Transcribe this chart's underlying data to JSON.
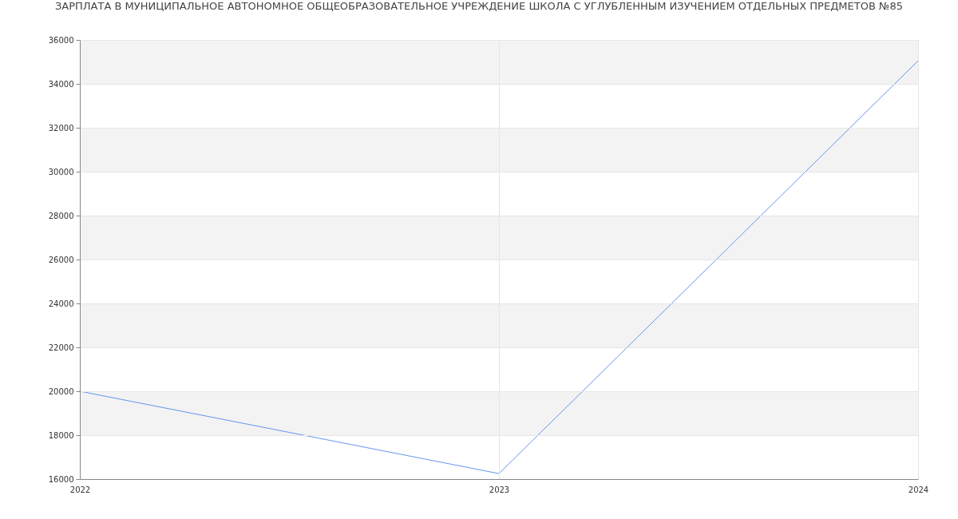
{
  "chart_data": {
    "type": "line",
    "title": "ЗАРПЛАТА В МУНИЦИПАЛЬНОЕ АВТОНОМНОЕ ОБЩЕОБРАЗОВАТЕЛЬНОЕ УЧРЕЖДЕНИЕ ШКОЛА С УГЛУБЛЕННЫМ ИЗУЧЕНИЕМ ОТДЕЛЬНЫХ ПРЕДМЕТОВ №85",
    "x": [
      2022,
      2023,
      2024
    ],
    "series": [
      {
        "color": "#6495ed",
        "values": [
          20000,
          16250,
          35050
        ]
      }
    ],
    "xlim": [
      2022,
      2024
    ],
    "xticks": [
      2022,
      2023,
      2024
    ],
    "ylim": [
      16000,
      36000
    ],
    "yticks": [
      16000,
      18000,
      20000,
      22000,
      24000,
      26000,
      28000,
      30000,
      32000,
      34000,
      36000
    ],
    "grid": true,
    "line_style": "solid",
    "bands": [
      {
        "axis": "y",
        "from": 18000,
        "to": 20000,
        "color": "#f3f3f3"
      },
      {
        "axis": "y",
        "from": 22000,
        "to": 24000,
        "color": "#f3f3f3"
      },
      {
        "axis": "y",
        "from": 26000,
        "to": 28000,
        "color": "#f3f3f3"
      },
      {
        "axis": "y",
        "from": 30000,
        "to": 32000,
        "color": "#f3f3f3"
      },
      {
        "axis": "y",
        "from": 34000,
        "to": 36000,
        "color": "#f3f3f3"
      }
    ]
  }
}
